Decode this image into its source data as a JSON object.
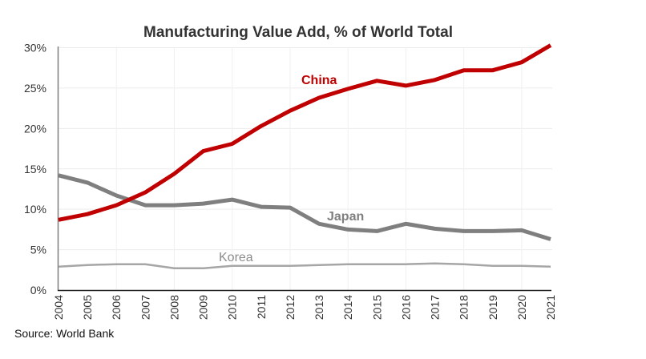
{
  "chart_data": {
    "type": "line",
    "title": "Manufacturing Value Add, % of World Total",
    "xlabel": "",
    "ylabel": "",
    "x": [
      2004,
      2005,
      2006,
      2007,
      2008,
      2009,
      2010,
      2011,
      2012,
      2013,
      2014,
      2015,
      2016,
      2017,
      2018,
      2019,
      2020,
      2021
    ],
    "x_tick_labels": [
      "2004",
      "2005",
      "2006",
      "2007",
      "2008",
      "2009",
      "2010",
      "2011",
      "2012",
      "2013",
      "2014",
      "2015",
      "2016",
      "2017",
      "2018",
      "2019",
      "2020",
      "2021"
    ],
    "ylim": [
      0,
      30
    ],
    "y_ticks": [
      0,
      5,
      10,
      15,
      20,
      25,
      30
    ],
    "y_tick_labels": [
      "0%",
      "5%",
      "10%",
      "15%",
      "20%",
      "25%",
      "30%"
    ],
    "grid": true,
    "legend": "inline-labels",
    "series": [
      {
        "name": "China",
        "color": "#c00000",
        "label_emphasis": "bold",
        "values": [
          8.7,
          9.4,
          10.5,
          12.1,
          14.4,
          17.2,
          18.1,
          20.3,
          22.2,
          23.8,
          24.9,
          25.9,
          25.3,
          26.0,
          27.2,
          27.2,
          28.2,
          30.3
        ]
      },
      {
        "name": "Japan",
        "color": "#7f7f7f",
        "label_emphasis": "bold",
        "values": [
          14.2,
          13.3,
          11.7,
          10.5,
          10.5,
          10.7,
          11.2,
          10.3,
          10.2,
          8.2,
          7.5,
          7.3,
          8.2,
          7.6,
          7.3,
          7.3,
          7.4,
          6.3
        ]
      },
      {
        "name": "Korea",
        "color": "#a6a6a6",
        "label_emphasis": "normal",
        "values": [
          2.9,
          3.1,
          3.2,
          3.2,
          2.7,
          2.7,
          3.0,
          3.0,
          3.0,
          3.1,
          3.2,
          3.2,
          3.2,
          3.3,
          3.2,
          3.0,
          3.0,
          2.9
        ]
      }
    ],
    "annotations": [
      "China",
      "Japan",
      "Korea"
    ],
    "source": "Source: World Bank"
  }
}
